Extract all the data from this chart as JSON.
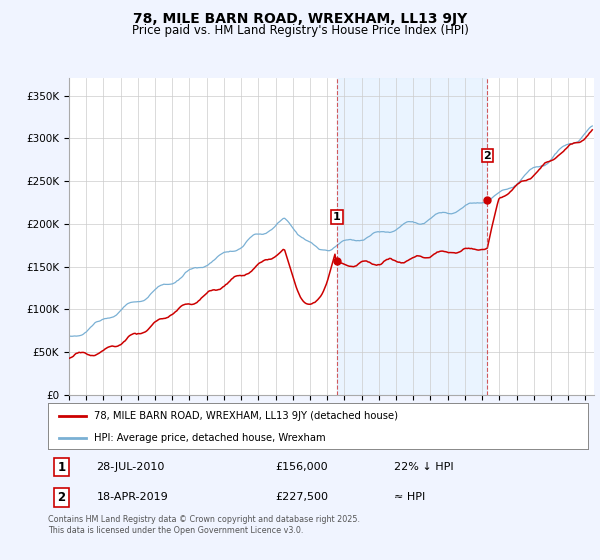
{
  "title": "78, MILE BARN ROAD, WREXHAM, LL13 9JY",
  "subtitle": "Price paid vs. HM Land Registry's House Price Index (HPI)",
  "title_fontsize": 10,
  "subtitle_fontsize": 8.5,
  "ylabel_ticks": [
    "£0",
    "£50K",
    "£100K",
    "£150K",
    "£200K",
    "£250K",
    "£300K",
    "£350K"
  ],
  "ytick_vals": [
    0,
    50000,
    100000,
    150000,
    200000,
    250000,
    300000,
    350000
  ],
  "ylim": [
    0,
    370000
  ],
  "xlim_start": 1995.0,
  "xlim_end": 2025.5,
  "red_color": "#cc0000",
  "blue_color": "#7ab0d4",
  "marker1_x": 2010.57,
  "marker1_y": 156000,
  "marker2_x": 2019.29,
  "marker2_y": 227500,
  "vline1_x": 2010.57,
  "vline2_x": 2019.29,
  "legend_label_red": "78, MILE BARN ROAD, WREXHAM, LL13 9JY (detached house)",
  "legend_label_blue": "HPI: Average price, detached house, Wrexham",
  "table_row1": [
    "1",
    "28-JUL-2010",
    "£156,000",
    "22% ↓ HPI"
  ],
  "table_row2": [
    "2",
    "18-APR-2019",
    "£227,500",
    "≈ HPI"
  ],
  "footnote": "Contains HM Land Registry data © Crown copyright and database right 2025.\nThis data is licensed under the Open Government Licence v3.0.",
  "background_color": "#f0f4ff",
  "plot_bg_color": "#ffffff",
  "grid_color": "#cccccc",
  "shade_color": "#ddeeff"
}
